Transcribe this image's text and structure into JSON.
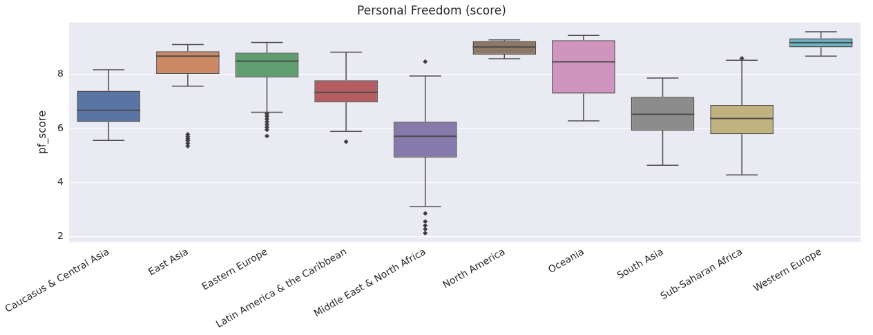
{
  "chart_data": {
    "type": "box",
    "title": "Personal Freedom (score)",
    "ylabel": "pf_score",
    "categories": [
      "Caucasus & Central Asia",
      "East Asia",
      "Eastern Europe",
      "Latin America & the Caribbean",
      "Middle East & North Africa",
      "North America",
      "Oceania",
      "South Asia",
      "Sub-Saharan Africa",
      "Western Europe"
    ],
    "colors": [
      "#5875a4",
      "#cc8963",
      "#5f9e6e",
      "#b55d60",
      "#857aab",
      "#8d7866",
      "#d095bf",
      "#8c8c8c",
      "#c1b37f",
      "#6cb4c6"
    ],
    "boxes": [
      {
        "low": 5.56,
        "q1": 6.24,
        "median": 6.67,
        "q3": 7.39,
        "high": 8.17
      },
      {
        "low": 7.56,
        "q1": 8.01,
        "median": 8.67,
        "q3": 8.85,
        "high": 9.1,
        "outliers": [
          5.78,
          5.7,
          5.62,
          5.55,
          5.45,
          5.35
        ]
      },
      {
        "low": 6.6,
        "q1": 7.89,
        "median": 8.49,
        "q3": 8.8,
        "high": 9.18,
        "outliers": [
          6.54,
          6.45,
          6.35,
          6.25,
          6.15,
          6.05,
          5.95,
          5.72
        ]
      },
      {
        "low": 5.89,
        "q1": 6.96,
        "median": 7.33,
        "q3": 7.78,
        "high": 8.82,
        "outliers": [
          5.51
        ]
      },
      {
        "low": 3.11,
        "q1": 4.93,
        "median": 5.71,
        "q3": 6.25,
        "high": 7.94,
        "outliers": [
          8.47,
          2.86,
          2.56,
          2.41,
          2.28,
          2.13
        ]
      },
      {
        "low": 8.58,
        "q1": 8.73,
        "median": 9.01,
        "q3": 9.23,
        "high": 9.27
      },
      {
        "low": 6.28,
        "q1": 7.29,
        "median": 8.46,
        "q3": 9.26,
        "high": 9.44
      },
      {
        "low": 4.64,
        "q1": 5.92,
        "median": 6.52,
        "q3": 7.17,
        "high": 7.86
      },
      {
        "low": 4.28,
        "q1": 5.79,
        "median": 6.37,
        "q3": 6.87,
        "high": 8.52,
        "outliers": [
          8.59
        ]
      },
      {
        "low": 8.67,
        "q1": 9.0,
        "median": 9.17,
        "q3": 9.33,
        "high": 9.57
      }
    ],
    "ylim": [
      1.8,
      9.92
    ],
    "yticks": [
      2,
      4,
      6,
      8
    ],
    "grid": "y",
    "marker": "diamond",
    "legend": false
  }
}
